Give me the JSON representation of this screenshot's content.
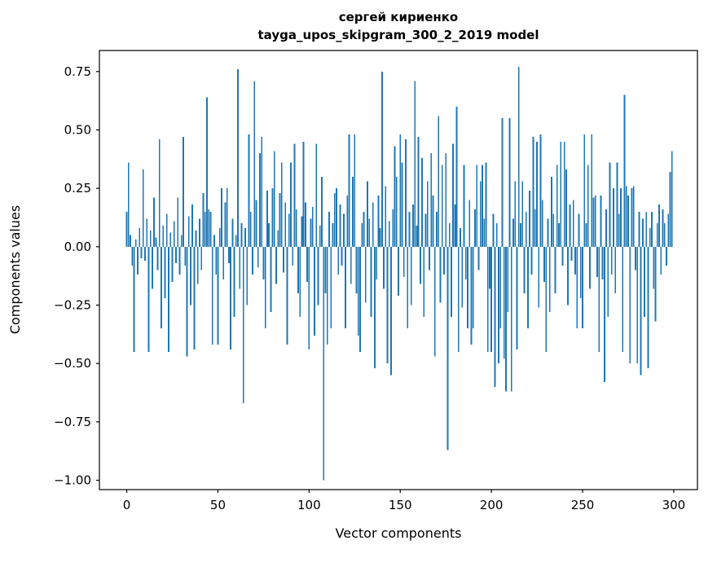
{
  "chart_data": {
    "type": "bar",
    "title_line1": "сергей кириенко",
    "title_line2": "tayga_upos_skipgram_300_2_2019 model",
    "xlabel": "Vector components",
    "ylabel": "Components values",
    "bar_color": "#1f77b4",
    "x_ticks": [
      0,
      50,
      100,
      150,
      200,
      250,
      300
    ],
    "y_ticks": [
      0.75,
      0.5,
      0.25,
      0.0,
      -0.25,
      -0.5,
      -0.75,
      -1.0
    ],
    "y_tick_labels": [
      "0.75",
      "0.50",
      "0.25",
      "0.00",
      "−0.25",
      "−0.50",
      "−0.75",
      "−1.00"
    ],
    "xlim": [
      -15,
      313
    ],
    "ylim": [
      -1.04,
      0.84
    ],
    "grid": false,
    "legend": "none",
    "values": [
      0.15,
      0.36,
      0.05,
      -0.08,
      -0.45,
      0.03,
      -0.12,
      0.08,
      -0.05,
      0.33,
      -0.06,
      0.12,
      -0.45,
      0.07,
      -0.18,
      0.21,
      0.04,
      -0.1,
      0.46,
      -0.35,
      0.09,
      -0.22,
      0.14,
      -0.45,
      0.06,
      -0.15,
      0.11,
      -0.07,
      0.21,
      -0.12,
      0.05,
      0.47,
      -0.08,
      -0.47,
      0.13,
      -0.25,
      0.18,
      -0.44,
      0.07,
      -0.16,
      0.12,
      -0.1,
      0.23,
      0.15,
      0.64,
      0.16,
      0.15,
      -0.42,
      0.05,
      -0.12,
      -0.42,
      0.08,
      0.25,
      -0.14,
      0.19,
      0.25,
      -0.07,
      -0.44,
      0.12,
      -0.3,
      0.05,
      0.76,
      -0.18,
      0.1,
      -0.67,
      0.08,
      -0.25,
      0.48,
      0.15,
      -0.12,
      0.71,
      0.2,
      -0.09,
      0.4,
      0.47,
      -0.14,
      -0.35,
      0.24,
      0.1,
      -0.28,
      0.25,
      0.41,
      -0.16,
      0.07,
      0.23,
      0.36,
      -0.11,
      0.19,
      -0.42,
      0.14,
      0.36,
      -0.08,
      0.44,
      0.16,
      -0.2,
      -0.3,
      0.13,
      0.45,
      0.19,
      -0.15,
      -0.44,
      0.12,
      0.17,
      -0.38,
      0.44,
      -0.25,
      0.09,
      0.3,
      -1.0,
      -0.2,
      -0.42,
      0.15,
      -0.35,
      0.1,
      0.23,
      0.25,
      -0.12,
      0.18,
      -0.08,
      0.14,
      -0.35,
      0.22,
      0.48,
      -0.16,
      0.3,
      0.48,
      -0.2,
      -0.38,
      -0.45,
      0.1,
      0.15,
      -0.24,
      0.28,
      0.12,
      -0.3,
      0.19,
      -0.52,
      -0.14,
      0.22,
      0.08,
      0.75,
      -0.18,
      0.26,
      -0.5,
      0.11,
      -0.55,
      0.16,
      0.43,
      0.3,
      -0.21,
      0.48,
      0.36,
      -0.13,
      0.46,
      -0.35,
      0.15,
      -0.25,
      0.18,
      0.71,
      0.09,
      0.47,
      -0.16,
      0.38,
      -0.3,
      0.14,
      0.28,
      -0.1,
      0.4,
      0.22,
      -0.47,
      0.15,
      0.56,
      -0.24,
      0.35,
      -0.12,
      0.4,
      -0.87,
      0.1,
      -0.3,
      0.44,
      0.18,
      0.6,
      -0.45,
      0.08,
      -0.26,
      0.35,
      -0.14,
      -0.35,
      0.2,
      -0.42,
      -0.35,
      0.16,
      0.35,
      -0.1,
      0.28,
      0.35,
      0.12,
      0.36,
      -0.45,
      -0.18,
      -0.45,
      0.14,
      -0.6,
      0.1,
      -0.5,
      -0.35,
      0.55,
      -0.48,
      -0.62,
      -0.28,
      0.55,
      -0.62,
      0.12,
      0.28,
      -0.44,
      0.77,
      0.1,
      0.28,
      -0.2,
      0.15,
      -0.35,
      0.24,
      -0.12,
      0.47,
      0.16,
      0.45,
      -0.26,
      0.48,
      0.2,
      -0.15,
      -0.45,
      0.12,
      -0.28,
      0.3,
      0.14,
      -0.2,
      0.35,
      0.1,
      0.45,
      -0.08,
      0.45,
      0.33,
      -0.25,
      0.18,
      -0.06,
      0.2,
      -0.12,
      -0.35,
      0.14,
      -0.22,
      -0.35,
      0.48,
      0.1,
      0.35,
      -0.18,
      0.48,
      0.21,
      0.22,
      -0.13,
      -0.45,
      0.22,
      -0.14,
      -0.58,
      0.16,
      -0.3,
      0.36,
      -0.12,
      0.25,
      -0.2,
      0.36,
      0.14,
      0.25,
      -0.45,
      0.65,
      0.26,
      0.22,
      -0.5,
      0.25,
      0.26,
      -0.1,
      -0.5,
      0.15,
      -0.55,
      0.12,
      -0.3,
      0.15,
      -0.52,
      0.08,
      0.15,
      -0.18,
      -0.32,
      0.1,
      0.18,
      -0.12,
      0.16,
      0.1,
      -0.08,
      0.14,
      0.32,
      0.41
    ]
  }
}
